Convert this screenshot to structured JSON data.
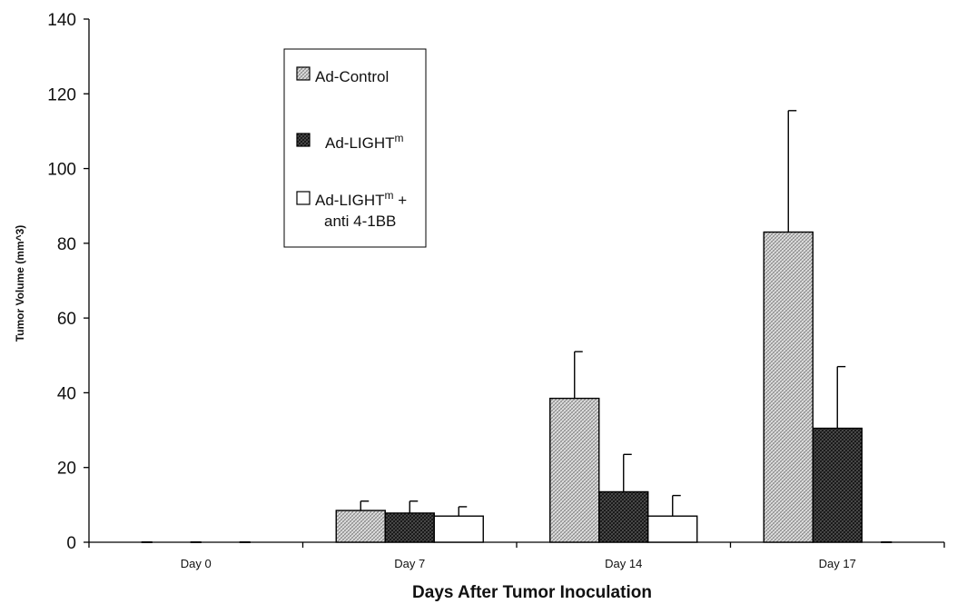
{
  "chart_data": {
    "type": "bar",
    "title": "",
    "xlabel": "Days After Tumor Inoculation",
    "ylabel": "Tumor Volume (mm^3)",
    "ylim": [
      0,
      140
    ],
    "yticks": [
      "0",
      "20",
      "40",
      "60",
      "80",
      "100",
      "120",
      "140"
    ],
    "categories": [
      "Day 0",
      "Day 7",
      "Day 14",
      "Day 17"
    ],
    "grid": false,
    "legend_position": "top-left",
    "series": [
      {
        "name": "Ad-Control",
        "pattern": "light-crosshatch",
        "values": [
          0,
          8.5,
          38.5,
          83
        ],
        "errors": [
          0,
          2.5,
          12.5,
          32.5
        ]
      },
      {
        "name": "Ad-LIGHTm",
        "legend_parts": [
          "Ad-LIGHT",
          "m",
          ""
        ],
        "pattern": "dark-crosshatch",
        "values": [
          0,
          7.8,
          13.5,
          30.5
        ],
        "errors": [
          0,
          3.2,
          10,
          16.5
        ]
      },
      {
        "name": "Ad-LIGHTm + anti 4-1BB",
        "legend_parts": [
          "Ad-LIGHT",
          "m",
          " +",
          "anti 4-1BB"
        ],
        "pattern": "white",
        "values": [
          0,
          7,
          7,
          0
        ],
        "errors": [
          0,
          2.5,
          5.5,
          0
        ]
      }
    ]
  }
}
